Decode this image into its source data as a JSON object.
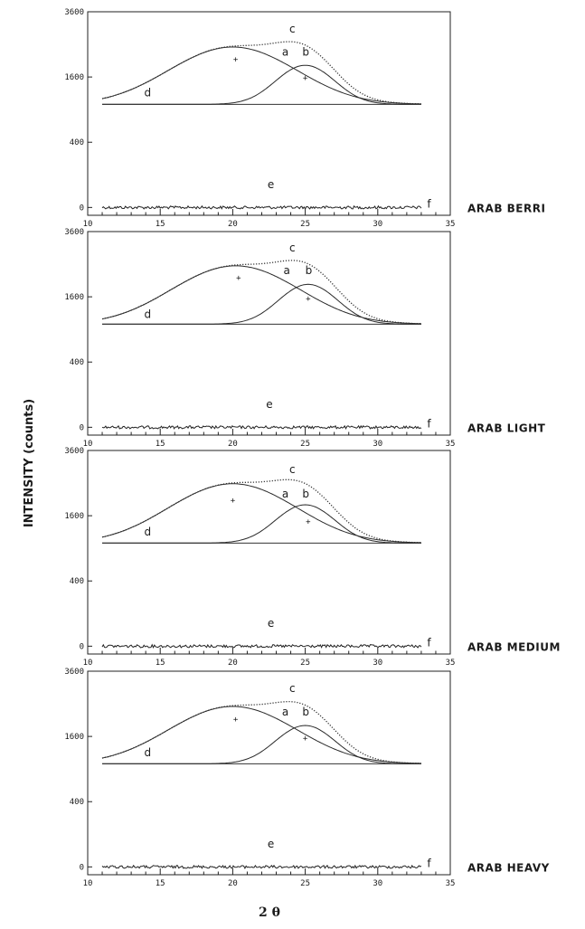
{
  "figure": {
    "ylabel": "INTENSITY   (counts)",
    "xlabel": "2 θ"
  },
  "chart_data": [
    {
      "type": "line",
      "panel_label": "ARAB BERRI",
      "xlim": [
        10,
        35
      ],
      "x_ticks": [
        10,
        15,
        20,
        25,
        30,
        35
      ],
      "x_tick_labels": [
        "10",
        "15",
        "20",
        "25",
        "30",
        "35"
      ],
      "y_ticks": [
        0,
        400,
        1600,
        3600
      ],
      "y_tick_labels": [
        "0",
        "400",
        "1600",
        "3600"
      ],
      "y_scale": "sqrt",
      "ylim": [
        -50,
        3600
      ],
      "baseline_level": 1000,
      "x_range": [
        11,
        33
      ],
      "peaks": {
        "a": {
          "center": 20.0,
          "height": 1420,
          "width": 4.0
        },
        "b": {
          "center": 25.0,
          "height": 900,
          "width": 1.9
        }
      },
      "markers": [
        {
          "x": 20.2,
          "y": 2060
        },
        {
          "x": 25.0,
          "y": 1580
        }
      ],
      "curve_labels": {
        "a": {
          "x": 23.4,
          "y": 2170
        },
        "b": {
          "x": 24.8,
          "y": 2170
        },
        "c": {
          "x": 23.9,
          "y": 2880
        },
        "d": {
          "x": 13.9,
          "y": 1160
        },
        "e": {
          "x": 22.4,
          "y": 35
        },
        "f": {
          "x": 33.4,
          "y": 0
        }
      }
    },
    {
      "type": "line",
      "panel_label": "ARAB LIGHT",
      "xlim": [
        10,
        35
      ],
      "x_ticks": [
        10,
        15,
        20,
        25,
        30,
        35
      ],
      "x_tick_labels": [
        "10",
        "15",
        "20",
        "25",
        "30",
        "35"
      ],
      "y_ticks": [
        0,
        400,
        1600,
        3600
      ],
      "y_tick_labels": [
        "0",
        "400",
        "1600",
        "3600"
      ],
      "y_scale": "sqrt",
      "ylim": [
        -50,
        3600
      ],
      "baseline_level": 1000,
      "x_range": [
        11,
        33
      ],
      "peaks": {
        "a": {
          "center": 20.2,
          "height": 1450,
          "width": 4.0
        },
        "b": {
          "center": 25.2,
          "height": 920,
          "width": 1.9
        }
      },
      "markers": [
        {
          "x": 20.4,
          "y": 2100
        },
        {
          "x": 25.2,
          "y": 1560
        }
      ],
      "curve_labels": {
        "a": {
          "x": 23.5,
          "y": 2200
        },
        "b": {
          "x": 25.0,
          "y": 2200
        },
        "c": {
          "x": 23.9,
          "y": 2900
        },
        "d": {
          "x": 13.9,
          "y": 1120
        },
        "e": {
          "x": 22.3,
          "y": 35
        },
        "f": {
          "x": 33.4,
          "y": 0
        }
      }
    },
    {
      "type": "line",
      "panel_label": "ARAB MEDIUM",
      "xlim": [
        10,
        35
      ],
      "x_ticks": [
        10,
        15,
        20,
        25,
        30,
        35
      ],
      "x_tick_labels": [
        "10",
        "15",
        "20",
        "25",
        "30",
        "35"
      ],
      "y_ticks": [
        0,
        400,
        1600,
        3600
      ],
      "y_tick_labels": [
        "0",
        "400",
        "1600",
        "3600"
      ],
      "y_scale": "sqrt",
      "ylim": [
        -50,
        3600
      ],
      "baseline_level": 1000,
      "x_range": [
        11,
        33
      ],
      "peaks": {
        "a": {
          "center": 20.0,
          "height": 1480,
          "width": 4.0
        },
        "b": {
          "center": 25.0,
          "height": 880,
          "width": 1.9
        }
      },
      "markers": [
        {
          "x": 20.0,
          "y": 2000
        },
        {
          "x": 25.2,
          "y": 1460
        }
      ],
      "curve_labels": {
        "a": {
          "x": 23.4,
          "y": 2080
        },
        "b": {
          "x": 24.8,
          "y": 2080
        },
        "c": {
          "x": 23.9,
          "y": 2820
        },
        "d": {
          "x": 13.9,
          "y": 1150
        },
        "e": {
          "x": 22.4,
          "y": 35
        },
        "f": {
          "x": 33.4,
          "y": 0
        }
      }
    },
    {
      "type": "line",
      "panel_label": "ARAB HEAVY",
      "xlim": [
        10,
        35
      ],
      "x_ticks": [
        10,
        15,
        20,
        25,
        30,
        35
      ],
      "x_tick_labels": [
        "10",
        "15",
        "20",
        "25",
        "30",
        "35"
      ],
      "y_ticks": [
        0,
        400,
        1600,
        3600
      ],
      "y_tick_labels": [
        "0",
        "400",
        "1600",
        "3600"
      ],
      "y_scale": "sqrt",
      "ylim": [
        -50,
        3600
      ],
      "baseline_level": 1000,
      "x_range": [
        11,
        33
      ],
      "peaks": {
        "a": {
          "center": 20.0,
          "height": 1420,
          "width": 4.0
        },
        "b": {
          "center": 25.0,
          "height": 880,
          "width": 1.9
        }
      },
      "markers": [
        {
          "x": 20.2,
          "y": 2050
        },
        {
          "x": 25.0,
          "y": 1560
        }
      ],
      "curve_labels": {
        "a": {
          "x": 23.4,
          "y": 2150
        },
        "b": {
          "x": 24.8,
          "y": 2150
        },
        "c": {
          "x": 23.9,
          "y": 2880
        },
        "d": {
          "x": 13.9,
          "y": 1150
        },
        "e": {
          "x": 22.4,
          "y": 35
        },
        "f": {
          "x": 33.4,
          "y": 0
        }
      }
    }
  ]
}
